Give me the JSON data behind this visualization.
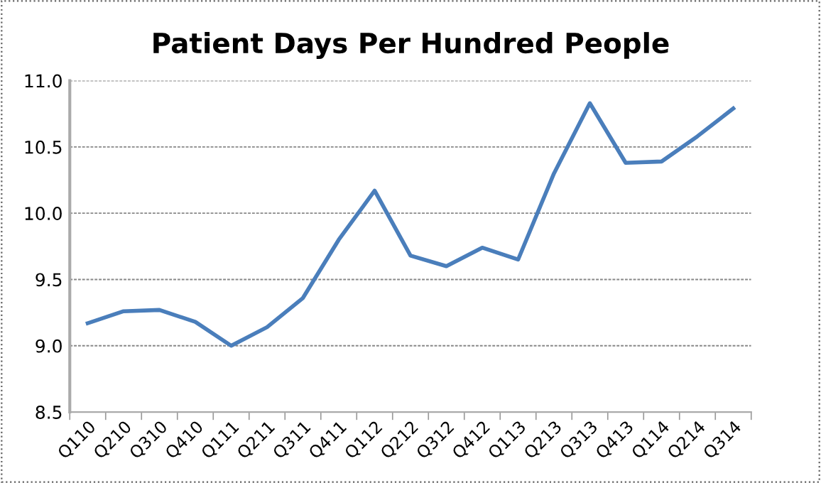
{
  "chart_data": {
    "type": "line",
    "title": "Patient Days Per Hundred People",
    "categories": [
      "Q110",
      "Q210",
      "Q310",
      "Q410",
      "Q111",
      "Q211",
      "Q311",
      "Q411",
      "Q112",
      "Q212",
      "Q312",
      "Q412",
      "Q113",
      "Q213",
      "Q313",
      "Q413",
      "Q114",
      "Q214",
      "Q314"
    ],
    "series": [
      {
        "color": "#4a7ebb",
        "values": [
          9.17,
          9.26,
          9.27,
          9.18,
          9.0,
          9.14,
          9.36,
          9.8,
          10.17,
          9.68,
          9.6,
          9.74,
          9.65,
          10.3,
          10.83,
          10.38,
          10.39,
          10.58,
          10.79
        ]
      }
    ],
    "ylim": [
      8.5,
      11.0
    ],
    "yticks": [
      {
        "value": 8.5,
        "label": "8.5"
      },
      {
        "value": 9.0,
        "label": "9.0"
      },
      {
        "value": 9.5,
        "label": "9.5"
      },
      {
        "value": 10.0,
        "label": "10.0"
      },
      {
        "value": 10.5,
        "label": "10.5"
      },
      {
        "value": 11.0,
        "label": "11.0"
      }
    ],
    "grid": "y",
    "legend": false,
    "marker": "none",
    "line_style": "solid"
  }
}
